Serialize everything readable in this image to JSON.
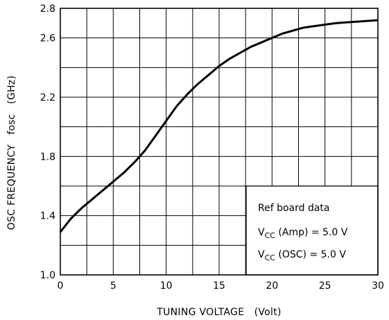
{
  "chart_data": {
    "type": "line",
    "title": "",
    "xlabel": "TUNING VOLTAGE   (Volt)",
    "ylabel": "OSC FREQUENCY   fosc   (GHz)",
    "xlim": [
      0,
      30
    ],
    "ylim": [
      1.0,
      2.8
    ],
    "x_ticks": [
      0,
      5,
      10,
      15,
      20,
      25,
      30
    ],
    "y_ticks": [
      1.0,
      1.4,
      1.8,
      2.2,
      2.6,
      2.8
    ],
    "x_tick_labels": [
      "0",
      "5",
      "10",
      "15",
      "20",
      "25",
      "30"
    ],
    "y_tick_labels": [
      "1.0",
      "1.4",
      "1.8",
      "2.2",
      "2.6",
      "2.8"
    ],
    "grid": true,
    "series": [
      {
        "name": "",
        "x": [
          0,
          1,
          2,
          3,
          4,
          5,
          6,
          7,
          8,
          9,
          10,
          11,
          12,
          13,
          14,
          15,
          16,
          17,
          18,
          19,
          20,
          21,
          22,
          23,
          24,
          25,
          26,
          27,
          28,
          29,
          30
        ],
        "y": [
          1.29,
          1.38,
          1.45,
          1.51,
          1.57,
          1.63,
          1.69,
          1.76,
          1.84,
          1.94,
          2.04,
          2.14,
          2.22,
          2.29,
          2.35,
          2.41,
          2.46,
          2.5,
          2.54,
          2.57,
          2.6,
          2.63,
          2.65,
          2.67,
          2.68,
          2.69,
          2.7,
          2.705,
          2.71,
          2.715,
          2.72
        ]
      }
    ],
    "annotation": {
      "line1": "Ref board data",
      "line2_main": "V",
      "line2_sub": "CC",
      "line2_rest": " (Amp)  =  5.0 V",
      "line3_main": "V",
      "line3_sub": "CC",
      "line3_rest": " (OSC)  =  5.0 V"
    }
  }
}
